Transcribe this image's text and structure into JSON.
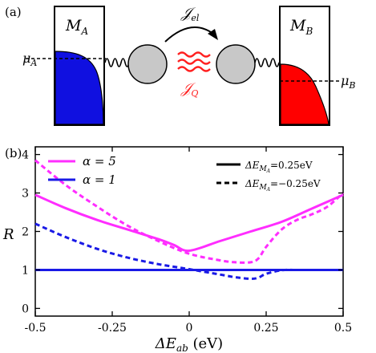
{
  "panel_a": {
    "label": "(a)",
    "left_reservoir": {
      "name": "M",
      "sub": "A",
      "mu_name": "μ",
      "mu_sub": "A",
      "color": "#1010e0"
    },
    "right_reservoir": {
      "name": "M",
      "sub": "B",
      "mu_name": "μ",
      "mu_sub": "B",
      "color": "#ff0000"
    },
    "electron_current": {
      "name": "𝒥",
      "sub": "el"
    },
    "heat_current": {
      "name": "𝒥",
      "sub": "Q",
      "color": "#ff2020"
    },
    "dot_color": "#c8c8c8"
  },
  "panel_b": {
    "label": "(b)",
    "colors": {
      "magenta": "#ff2dff",
      "blue": "#1a1ae6"
    },
    "legend_left": [
      {
        "text": "α = 5",
        "color": "#ff2dff"
      },
      {
        "text": "α = 1",
        "color": "#1a1ae6"
      }
    ],
    "legend_right": [
      {
        "text": "ΔE",
        "sub": "M",
        "subsub": "A",
        "value": "=0.25eV",
        "style": "solid"
      },
      {
        "text": "ΔE",
        "sub": "M",
        "subsub": "A",
        "value": "=−0.25eV",
        "style": "dashed"
      }
    ],
    "ylabel": "R",
    "xlabel_main": "ΔE",
    "xlabel_sub": "ab",
    "xlabel_unit": " (eV)"
  },
  "chart_data": {
    "type": "line",
    "xlim": [
      -0.5,
      0.5
    ],
    "ylim": [
      -0.2,
      4.2
    ],
    "xticks": [
      "-0.5",
      "-0.25",
      "0",
      "0.25",
      "0.5"
    ],
    "xtick_values": [
      -0.5,
      -0.25,
      0,
      0.25,
      0.5
    ],
    "yticks": [
      "0",
      "1",
      "2",
      "3",
      "4"
    ],
    "ytick_values": [
      0,
      1,
      2,
      3,
      4
    ],
    "grid": false,
    "series": [
      {
        "color": "#ff2dff",
        "style": "solid",
        "x": [
          -0.5,
          -0.4,
          -0.3,
          -0.2,
          -0.1,
          -0.05,
          0,
          0.1,
          0.2,
          0.3,
          0.4,
          0.5
        ],
        "y": [
          2.95,
          2.6,
          2.3,
          2.05,
          1.8,
          1.65,
          1.5,
          1.75,
          2.0,
          2.25,
          2.6,
          2.95
        ]
      },
      {
        "color": "#ff2dff",
        "style": "dashed",
        "x": [
          -0.5,
          -0.4,
          -0.3,
          -0.2,
          -0.1,
          0,
          0.1,
          0.15,
          0.2,
          0.225,
          0.25,
          0.3,
          0.35,
          0.4,
          0.45,
          0.5
        ],
        "y": [
          3.85,
          3.2,
          2.65,
          2.15,
          1.75,
          1.42,
          1.25,
          1.2,
          1.2,
          1.3,
          1.6,
          2.05,
          2.3,
          2.45,
          2.65,
          3.0
        ]
      },
      {
        "color": "#1a1ae6",
        "style": "solid",
        "x": [
          -0.5,
          -0.25,
          0,
          0.25,
          0.5
        ],
        "y": [
          1.0,
          1.0,
          1.0,
          1.0,
          1.0
        ]
      },
      {
        "color": "#1a1ae6",
        "style": "dashed",
        "x": [
          -0.5,
          -0.4,
          -0.3,
          -0.2,
          -0.1,
          0,
          0.1,
          0.15,
          0.2,
          0.225,
          0.25,
          0.3,
          0.35,
          0.4,
          0.5
        ],
        "y": [
          2.2,
          1.85,
          1.55,
          1.32,
          1.15,
          1.02,
          0.88,
          0.81,
          0.77,
          0.8,
          0.9,
          0.99,
          1.0,
          1.0,
          1.0
        ]
      }
    ]
  }
}
